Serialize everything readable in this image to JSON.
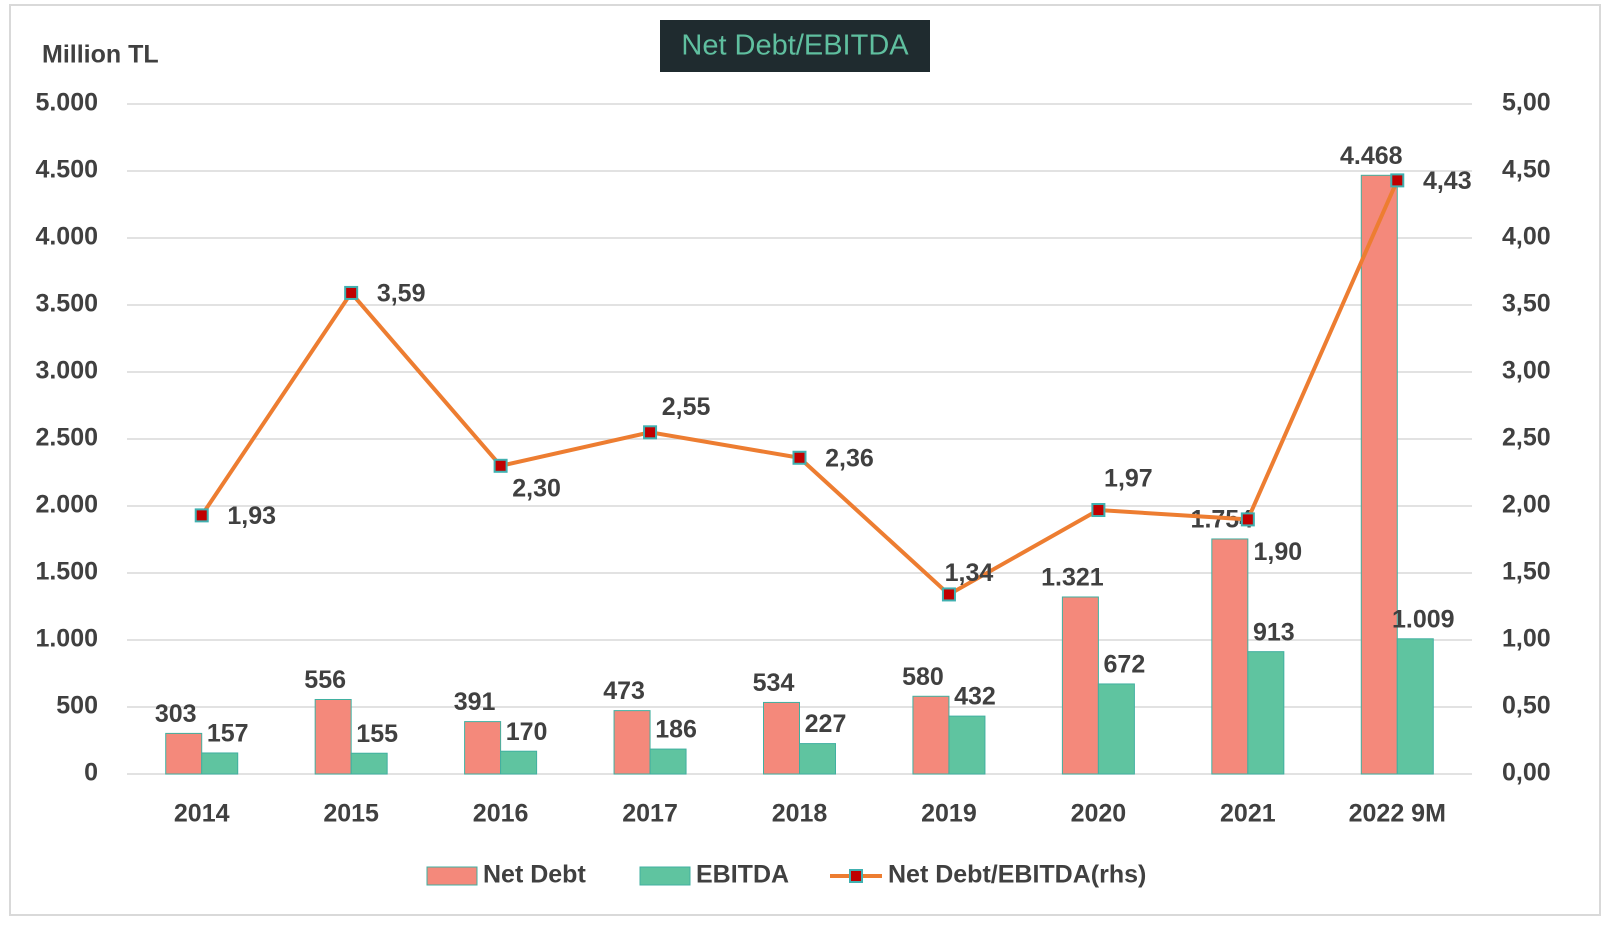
{
  "chart_data": {
    "type": "bar-line",
    "title": "Net Debt/EBITDA",
    "y_label": "Million TL",
    "categories": [
      "2014",
      "2015",
      "2016",
      "2017",
      "2018",
      "2019",
      "2020",
      "2021",
      "2022 9M"
    ],
    "series": [
      {
        "name": "Net Debt",
        "type": "bar",
        "color": "#f4897b",
        "values": [
          303,
          556,
          391,
          473,
          534,
          580,
          1321,
          1754,
          4468
        ],
        "value_labels": [
          "303",
          "556",
          "391",
          "473",
          "534",
          "580",
          "1.321",
          "1.754",
          "4.468"
        ]
      },
      {
        "name": "EBITDA",
        "type": "bar",
        "color": "#5fc4a0",
        "values": [
          157,
          155,
          170,
          186,
          227,
          432,
          672,
          913,
          1009
        ],
        "value_labels": [
          "157",
          "155",
          "170",
          "186",
          "227",
          "432",
          "672",
          "913",
          "1.009"
        ]
      },
      {
        "name": "Net Debt/EBITDA(rhs)",
        "type": "line",
        "axis": "y2",
        "color": "#ed7d31",
        "marker_color": "#c00000",
        "values": [
          1.93,
          3.59,
          2.3,
          2.55,
          2.36,
          1.34,
          1.97,
          1.9,
          4.43
        ],
        "value_labels": [
          "1,93",
          "3,59",
          "2,30",
          "2,55",
          "2,36",
          "1,34",
          "1,97",
          "1,90",
          "4,43"
        ]
      }
    ],
    "ylim": [
      0,
      5000
    ],
    "yticks": [
      {
        "value": 0,
        "label": "0"
      },
      {
        "value": 500,
        "label": "500"
      },
      {
        "value": 1000,
        "label": "1.000"
      },
      {
        "value": 1500,
        "label": "1.500"
      },
      {
        "value": 2000,
        "label": "2.000"
      },
      {
        "value": 2500,
        "label": "2.500"
      },
      {
        "value": 3000,
        "label": "3.000"
      },
      {
        "value": 3500,
        "label": "3.500"
      },
      {
        "value": 4000,
        "label": "4.000"
      },
      {
        "value": 4500,
        "label": "4.500"
      },
      {
        "value": 5000,
        "label": "5.000"
      }
    ],
    "y2lim": [
      0,
      5
    ],
    "y2ticks": [
      {
        "value": 0,
        "label": "0,00"
      },
      {
        "value": 0.5,
        "label": "0,50"
      },
      {
        "value": 1,
        "label": "1,00"
      },
      {
        "value": 1.5,
        "label": "1,50"
      },
      {
        "value": 2,
        "label": "2,00"
      },
      {
        "value": 2.5,
        "label": "2,50"
      },
      {
        "value": 3,
        "label": "3,00"
      },
      {
        "value": 3.5,
        "label": "3,50"
      },
      {
        "value": 4,
        "label": "4,00"
      },
      {
        "value": 4.5,
        "label": "4,50"
      },
      {
        "value": 5,
        "label": "5,00"
      }
    ],
    "grid": true,
    "legend": "bottom"
  }
}
